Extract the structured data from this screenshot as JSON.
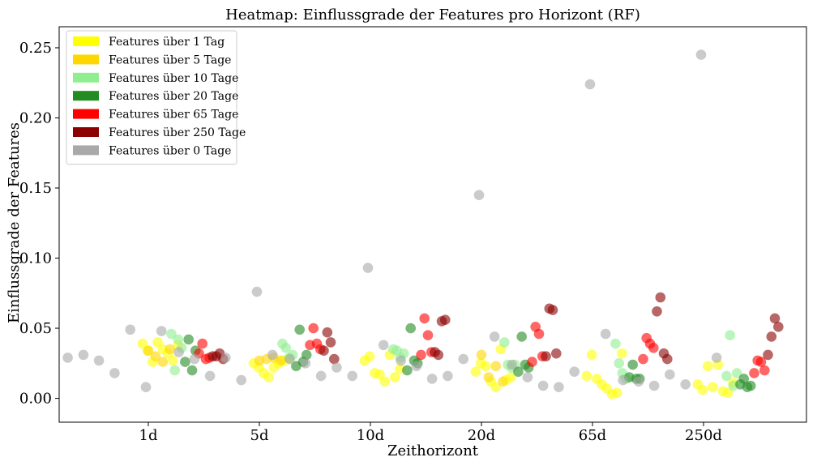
{
  "chart_data": {
    "type": "scatter",
    "title": "Heatmap: Einflussgrade der Features pro Horizont (RF)",
    "xlabel": "Zeithorizont",
    "ylabel": "Einflussgrade der Features",
    "x_tick_labels": [
      "1d",
      "5d",
      "10d",
      "20d",
      "65d",
      "250d"
    ],
    "y_ticks": [
      0.0,
      0.05,
      0.1,
      0.15,
      0.2,
      0.25
    ],
    "y_tick_labels": [
      "0.00",
      "0.05",
      "0.10",
      "0.15",
      "0.20",
      "0.25"
    ],
    "ylim": [
      -0.017,
      0.265
    ],
    "grid": false,
    "legend_position": "upper-left",
    "point_opacity": 0.6,
    "series": [
      {
        "name": "Features über 1 Tag",
        "color": "#ffff00",
        "x": [
          1,
          2,
          3,
          4,
          5,
          6,
          7,
          8,
          9,
          10,
          11,
          12,
          13,
          14,
          15,
          16,
          17,
          18,
          19,
          20,
          21,
          22,
          23,
          24,
          25,
          26,
          27,
          28,
          29,
          30,
          31,
          32,
          33,
          34,
          35,
          36,
          37,
          38,
          39,
          40,
          41,
          42,
          43,
          44,
          45,
          46,
          47,
          48
        ],
        "y": [
          0.039,
          0.034,
          0.026,
          0.04,
          0.035,
          0.032,
          0.027,
          0.038,
          0.025,
          0.022,
          0.018,
          0.015,
          0.022,
          0.025,
          0.027,
          0.028,
          0.027,
          0.03,
          0.018,
          0.017,
          0.012,
          0.031,
          0.015,
          0.021,
          0.019,
          0.025,
          0.023,
          0.012,
          0.008,
          0.035,
          0.013,
          0.015,
          0.016,
          0.031,
          0.014,
          0.01,
          0.007,
          0.003,
          0.004,
          0.032,
          0.01,
          0.006,
          0.023,
          0.008,
          0.024,
          0.005,
          0.004,
          0.011
        ]
      },
      {
        "name": "Features über 5 Tage",
        "color": "#ffd700",
        "x": [
          5,
          6,
          7,
          8,
          25,
          26,
          27,
          28,
          45,
          46,
          47,
          48
        ],
        "y": [
          0.034,
          0.03,
          0.026,
          0.035,
          0.027,
          0.028,
          0.029,
          0.027,
          0.031,
          0.015,
          0.023,
          0.012
        ]
      },
      {
        "name": "Features über 10 Tage",
        "color": "#90ee90",
        "x": [
          1,
          2,
          3,
          4,
          5,
          6,
          7,
          8,
          9,
          10,
          11,
          12,
          13,
          14,
          15,
          16,
          17,
          18,
          19,
          20,
          21,
          22,
          23,
          24
        ],
        "y": [
          0.046,
          0.02,
          0.042,
          0.036,
          0.039,
          0.036,
          0.029,
          0.031,
          0.035,
          0.034,
          0.029,
          0.032,
          0.04,
          0.024,
          0.022,
          0.024,
          0.039,
          0.025,
          0.018,
          0.014,
          0.016,
          0.045,
          0.009,
          0.018
        ]
      },
      {
        "name": "Features über 20 Tage",
        "color": "#228b22",
        "x": [
          1,
          2,
          3,
          4,
          5,
          6,
          7,
          8,
          9,
          10,
          11,
          12,
          13,
          14,
          15,
          16,
          17,
          18,
          19,
          20,
          21,
          22,
          23,
          24
        ],
        "y": [
          0.026,
          0.042,
          0.02,
          0.034,
          0.023,
          0.049,
          0.026,
          0.031,
          0.02,
          0.05,
          0.027,
          0.025,
          0.019,
          0.044,
          0.024,
          0.022,
          0.015,
          0.024,
          0.014,
          0.014,
          0.01,
          0.014,
          0.008,
          0.009
        ]
      },
      {
        "name": "Features über 65 Tage",
        "color": "#ff0000",
        "x": [
          1,
          2,
          3,
          4,
          5,
          6,
          7,
          8,
          9,
          10,
          11,
          12,
          13,
          14,
          15,
          16,
          17,
          18,
          19,
          20,
          21,
          22,
          23,
          24
        ],
        "y": [
          0.032,
          0.039,
          0.028,
          0.029,
          0.038,
          0.05,
          0.039,
          0.035,
          0.031,
          0.057,
          0.045,
          0.033,
          0.026,
          0.051,
          0.046,
          0.03,
          0.028,
          0.043,
          0.039,
          0.036,
          0.018,
          0.027,
          0.026,
          0.02
        ]
      },
      {
        "name": "Features über 250 Tage",
        "color": "#8b0000",
        "x": [
          1,
          2,
          3,
          4,
          5,
          6,
          7,
          8,
          9,
          10,
          11,
          12,
          13,
          14,
          15,
          16,
          17,
          18,
          19,
          20,
          21,
          22,
          23,
          24
        ],
        "y": [
          0.03,
          0.03,
          0.032,
          0.028,
          0.034,
          0.047,
          0.04,
          0.028,
          0.033,
          0.031,
          0.055,
          0.056,
          0.03,
          0.064,
          0.063,
          0.032,
          0.062,
          0.072,
          0.032,
          0.028,
          0.031,
          0.044,
          0.057,
          0.051
        ]
      },
      {
        "name": "Features über 0 Tage",
        "color": "#a9a9a9",
        "x": [
          1,
          2,
          3,
          4,
          5,
          6,
          7,
          8,
          9,
          10,
          11,
          12,
          13,
          14,
          15,
          16,
          17,
          18,
          19,
          20,
          21,
          22,
          23,
          24,
          25,
          26,
          27,
          28,
          29,
          30,
          31,
          32,
          33,
          34,
          35,
          36,
          37,
          38,
          39,
          40,
          41,
          42
        ],
        "y": [
          0.029,
          0.031,
          0.027,
          0.018,
          0.049,
          0.008,
          0.048,
          0.033,
          0.028,
          0.016,
          0.029,
          0.013,
          0.076,
          0.031,
          0.028,
          0.025,
          0.016,
          0.022,
          0.016,
          0.093,
          0.038,
          0.027,
          0.023,
          0.014,
          0.016,
          0.028,
          0.145,
          0.044,
          0.024,
          0.015,
          0.009,
          0.008,
          0.019,
          0.224,
          0.046,
          0.013,
          0.012,
          0.009,
          0.017,
          0.01,
          0.245,
          0.029
        ]
      }
    ]
  }
}
